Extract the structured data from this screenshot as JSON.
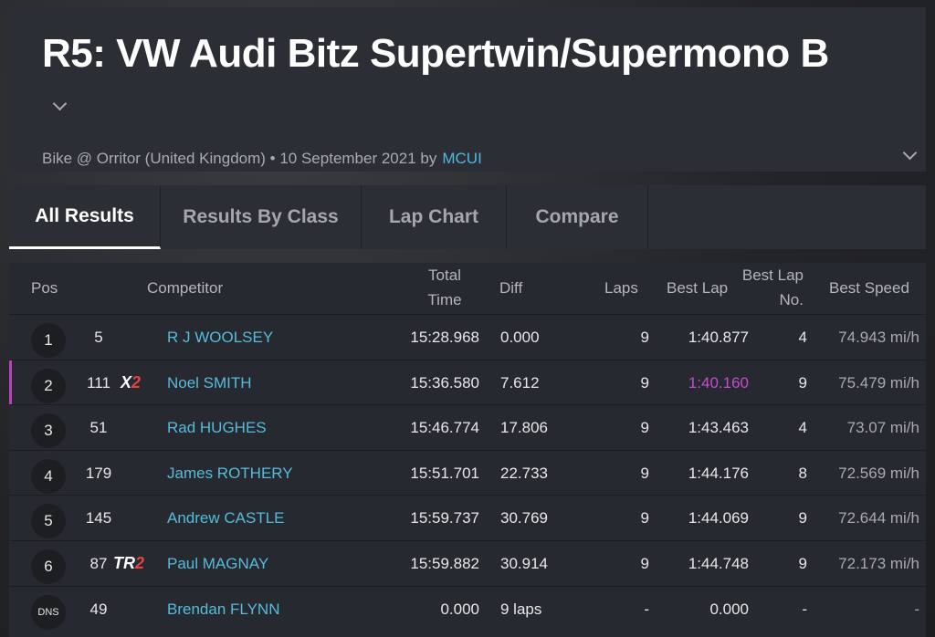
{
  "header": {
    "title": "R5: VW Audi Bitz Supertwin/Supermono B",
    "subtitle": "Bike @ Orritor (United Kingdom) • 10 September 2021 by",
    "organizer": "MCUI"
  },
  "tabs": [
    "All Results",
    "Results By Class",
    "Lap Chart",
    "Compare"
  ],
  "table": {
    "columns": [
      "Pos",
      "Competitor",
      "Total Time",
      "Diff",
      "Laps",
      "Best Lap",
      "Best Lap No.",
      "Best Speed"
    ],
    "rows": [
      {
        "pos": "1",
        "number": "5",
        "badge": null,
        "name": "R J WOOLSEY",
        "total": "15:28.968",
        "diff": "0.000",
        "laps": "9",
        "best_lap": "1:40.877",
        "best_lap_no": "4",
        "best_speed": "74.943 mi/h"
      },
      {
        "pos": "2",
        "number": "111",
        "badge": [
          "X",
          "2"
        ],
        "name": "Noel SMITH",
        "total": "15:36.580",
        "diff": "7.612",
        "laps": "9",
        "best_lap": "1:40.160",
        "best_lap_no": "9",
        "best_speed": "75.479 mi/h"
      },
      {
        "pos": "3",
        "number": "51",
        "badge": null,
        "name": "Rad HUGHES",
        "total": "15:46.774",
        "diff": "17.806",
        "laps": "9",
        "best_lap": "1:43.463",
        "best_lap_no": "4",
        "best_speed": "73.07 mi/h"
      },
      {
        "pos": "4",
        "number": "179",
        "badge": null,
        "name": "James ROTHERY",
        "total": "15:51.701",
        "diff": "22.733",
        "laps": "9",
        "best_lap": "1:44.176",
        "best_lap_no": "8",
        "best_speed": "72.569 mi/h"
      },
      {
        "pos": "5",
        "number": "145",
        "badge": null,
        "name": "Andrew CASTLE",
        "total": "15:59.737",
        "diff": "30.769",
        "laps": "9",
        "best_lap": "1:44.069",
        "best_lap_no": "9",
        "best_speed": "72.644 mi/h"
      },
      {
        "pos": "6",
        "number": "87",
        "badge": [
          "TR",
          "2"
        ],
        "name": "Paul MAGNAY",
        "total": "15:59.882",
        "diff": "30.914",
        "laps": "9",
        "best_lap": "1:44.748",
        "best_lap_no": "9",
        "best_speed": "72.173 mi/h"
      },
      {
        "pos": "DNS",
        "number": "49",
        "badge": null,
        "name": "Brendan FLYNN",
        "total": "0.000",
        "diff": "9 laps",
        "laps": "-",
        "best_lap": "0.000",
        "best_lap_no": "-",
        "best_speed": "-"
      }
    ]
  }
}
